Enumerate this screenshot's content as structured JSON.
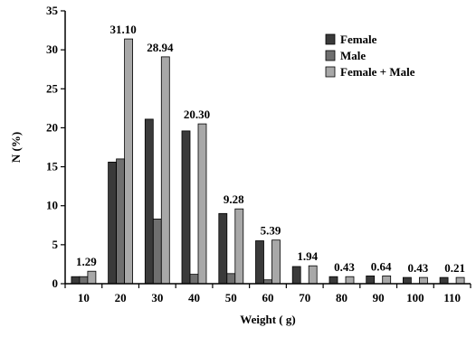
{
  "chart_data": {
    "type": "bar",
    "xlabel": "Weight ( g)",
    "ylabel": "N (%)",
    "ylim": [
      0,
      35
    ],
    "yticks": [
      0,
      5,
      10,
      15,
      20,
      25,
      30,
      35
    ],
    "categories": [
      "10",
      "20",
      "30",
      "40",
      "50",
      "60",
      "70",
      "80",
      "90",
      "100",
      "110"
    ],
    "series": [
      {
        "name": "Female",
        "color": "#3a3a3a",
        "values": [
          0.9,
          15.6,
          21.1,
          19.6,
          9.0,
          5.5,
          2.2,
          0.9,
          1.0,
          0.8,
          0.8
        ]
      },
      {
        "name": "Male",
        "color": "#6f6f6f",
        "values": [
          0.9,
          16.0,
          8.3,
          1.2,
          1.3,
          0.5,
          0.0,
          0.0,
          0.0,
          0.0,
          0.0
        ]
      },
      {
        "name": "Female + Male",
        "color": "#a8a8a8",
        "values": [
          1.6,
          31.4,
          29.1,
          20.5,
          9.6,
          5.6,
          2.3,
          0.9,
          1.0,
          0.8,
          0.8
        ]
      }
    ],
    "data_labels": [
      "1.29",
      "31.10",
      "28.94",
      "20.30",
      "9.28",
      "5.39",
      "1.94",
      "0.43",
      "0.64",
      "0.43",
      "0.21"
    ],
    "legend_position": "top-right",
    "grid": false
  }
}
